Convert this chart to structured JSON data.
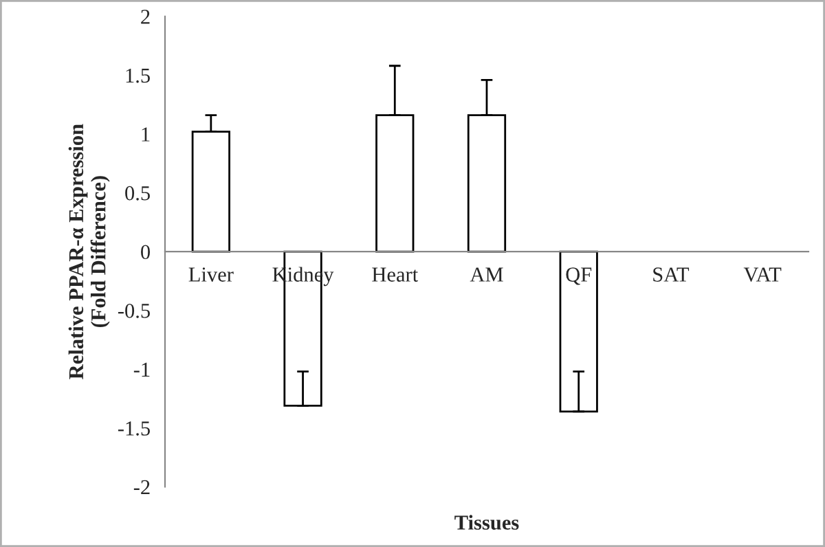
{
  "chart_data": {
    "type": "bar",
    "xlabel": "Tissues",
    "ylabel": "Relative PPAR-α Expression\n(Fold Difference)",
    "categories": [
      "Liver",
      "Kidney",
      "Heart",
      "AM",
      "QF",
      "SAT",
      "VAT"
    ],
    "values": [
      1.02,
      -1.31,
      1.16,
      1.16,
      -1.36,
      0,
      0
    ],
    "errors": [
      [
        1.02,
        1.16
      ],
      [
        -1.31,
        -1.02
      ],
      [
        1.16,
        1.58
      ],
      [
        1.16,
        1.46
      ],
      [
        -1.36,
        -1.02
      ],
      null,
      null
    ],
    "color": "#ffffff",
    "ylim": [
      -2,
      2
    ],
    "yticks": [
      -2,
      -1.5,
      -1,
      -0.5,
      0,
      0.5,
      1,
      1.5,
      2
    ],
    "grid": false
  }
}
